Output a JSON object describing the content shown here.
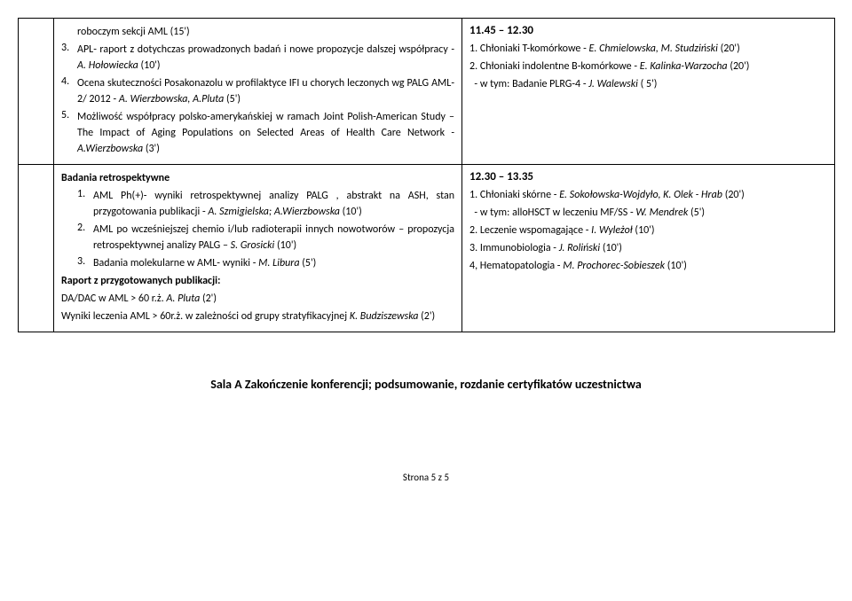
{
  "row1": {
    "left": {
      "pre": "roboczym sekcji AML (15')",
      "items": [
        {
          "n": "3.",
          "html": "APL- raport z dotychczas prowadzonych badań i nowe propozycje dalszej współpracy - <span class='italic'>A. Hołowiecka</span> (10')"
        },
        {
          "n": "4.",
          "html": "Ocena skuteczności Posakonazolu w profilaktyce IFI u chorych leczonych wg PALG AML-2/ 2012 - <span class='italic'>A. Wierzbowska, A.Pluta</span> (5')"
        },
        {
          "n": "5.",
          "html": "Możliwość współpracy polsko-amerykańskiej w ramach Joint Polish-American Study – The Impact of Aging Populations on Selected Areas of Health Care Network - <span class='italic'>A.Wierzbowska</span> (3')"
        }
      ]
    },
    "right": {
      "time": "11.45 – 12.30",
      "lines": [
        "1. Chłoniaki T-komórkowe - <span class='italic'>E. Chmielowska, M. Studziński</span> (20')",
        "2. Chłoniaki indolentne B-komórkowe  - <span class='italic'>E. Kalinka-Warzocha</span> (20')",
        "&nbsp;&nbsp;- w tym: Badanie PLRG-4  -<span class='italic'> J. Walewski</span> ( 5')"
      ]
    }
  },
  "row2": {
    "left": {
      "heading": "Badania retrospektywne",
      "items": [
        {
          "n": "1.",
          "html": "AML Ph(+)- wyniki retrospektywnej analizy PALG , abstrakt na ASH, stan przygotowania publikacji - <span class='italic'>A. Szmigielska; A.Wierzbowska</span> (10')"
        },
        {
          "n": "2.",
          "html": "AML po wcześniejszej chemio i/lub radioterapii innych nowotworów – propozycja retrospektywnej analizy PALG – <span class='italic'>S. Grosicki</span> (10')"
        },
        {
          "n": "3.",
          "html": "Badania molekularne w AML- wyniki - <span class='italic'>M. Libura</span> (5')"
        }
      ],
      "sub": "Raport z przygotowanych publikacji:",
      "tail": [
        "DA/DAC w AML > 60 r.ż. <span class='italic'>A. Pluta</span> (2')",
        "Wyniki leczenia AML > 60r.ż. w zależności od grupy stratyfikacyjnej <span class='italic'>K. Budziszewska</span> (2')"
      ]
    },
    "right": {
      "time": "12.30 – 13.35",
      "lines": [
        "1. Chłoniaki skórne - <span class='italic'>E. Sokołowska-Wojdyło, K. Olek - Hrab</span> (20')",
        "&nbsp;&nbsp;- w tym: alloHSCT w leczeniu MF/SS  - <span class='italic'>W. Mendrek</span>  (5')",
        "2. Leczenie wspomagające  - <span class='italic'>I. Wyleżoł</span> (10')",
        "3. Immunobiologia - <span class='italic'>J. Roliński</span>  (10')",
        "4, Hematopatologia - <span class='italic'>M. Prochorec-Sobieszek</span> (10')"
      ]
    }
  },
  "closing": "Sala A   Zakończenie konferencji; podsumowanie, rozdanie certyfikatów uczestnictwa",
  "footer": "Strona 5 z 5"
}
